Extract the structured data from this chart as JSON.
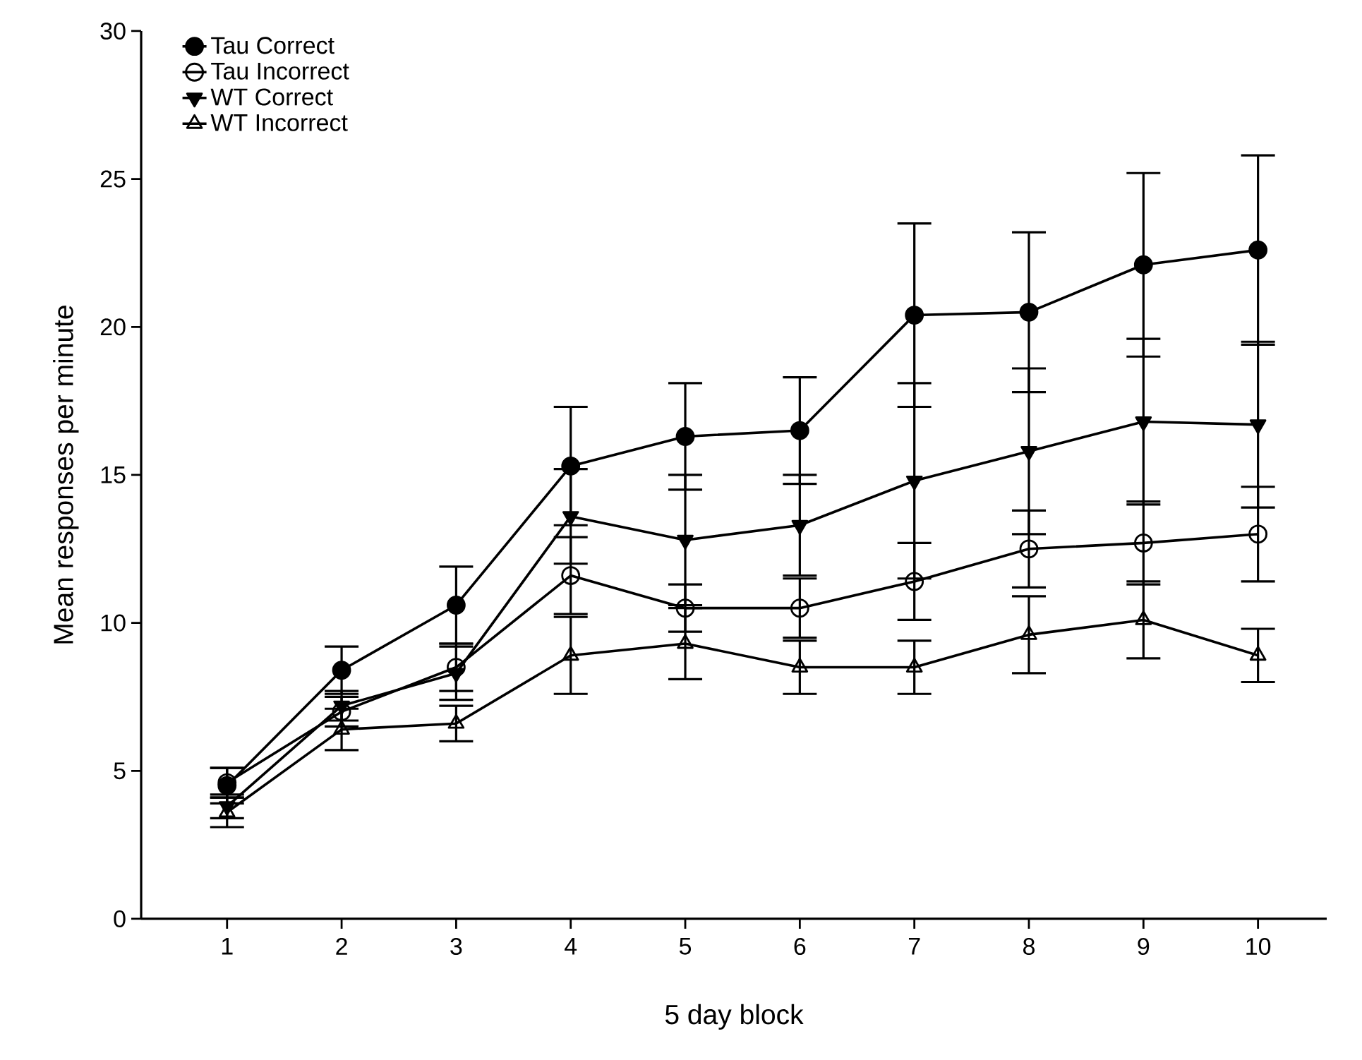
{
  "chart_data": {
    "type": "line",
    "xlabel": "5 day block",
    "ylabel": "Mean responses per minute",
    "x": [
      1,
      2,
      3,
      4,
      5,
      6,
      7,
      8,
      9,
      10
    ],
    "xlim": [
      0.25,
      10.6
    ],
    "xticks": [
      1,
      2,
      3,
      4,
      5,
      6,
      7,
      8,
      9,
      10
    ],
    "ylim": [
      0,
      30
    ],
    "yticks": [
      0,
      5,
      10,
      15,
      20,
      25,
      30
    ],
    "legend": "top left",
    "grid": false,
    "series": [
      {
        "name": "Tau Correct",
        "color": "#000000",
        "marker": "circle",
        "values": [
          4.5,
          8.4,
          10.6,
          15.3,
          16.3,
          16.5,
          20.4,
          20.5,
          22.1,
          22.6
        ],
        "errors": [
          0.6,
          0.8,
          1.3,
          2.0,
          1.8,
          1.8,
          3.1,
          2.7,
          3.1,
          3.2
        ]
      },
      {
        "name": "Tau Incorrect",
        "color": "#000000",
        "marker": "circle open",
        "values": [
          4.6,
          7.0,
          8.5,
          11.6,
          10.5,
          10.5,
          11.4,
          12.5,
          12.7,
          13.0
        ],
        "errors": [
          0.5,
          0.5,
          0.8,
          1.3,
          0.8,
          1.0,
          1.3,
          1.3,
          1.4,
          1.6
        ]
      },
      {
        "name": "WT Correct",
        "color": "#000000",
        "marker": "triangle down",
        "values": [
          3.8,
          7.2,
          8.3,
          13.6,
          12.8,
          13.3,
          14.8,
          15.8,
          16.8,
          16.7
        ],
        "errors": [
          0.4,
          0.5,
          0.9,
          1.6,
          2.2,
          1.7,
          3.3,
          2.8,
          2.8,
          2.8
        ]
      },
      {
        "name": "WT Incorrect",
        "color": "#000000",
        "marker": "triangle open",
        "values": [
          3.6,
          6.4,
          6.6,
          8.9,
          9.3,
          8.5,
          8.5,
          9.6,
          10.1,
          8.9
        ],
        "errors": [
          0.5,
          0.7,
          0.6,
          1.3,
          1.2,
          0.9,
          0.9,
          1.3,
          1.3,
          0.9
        ]
      }
    ]
  }
}
